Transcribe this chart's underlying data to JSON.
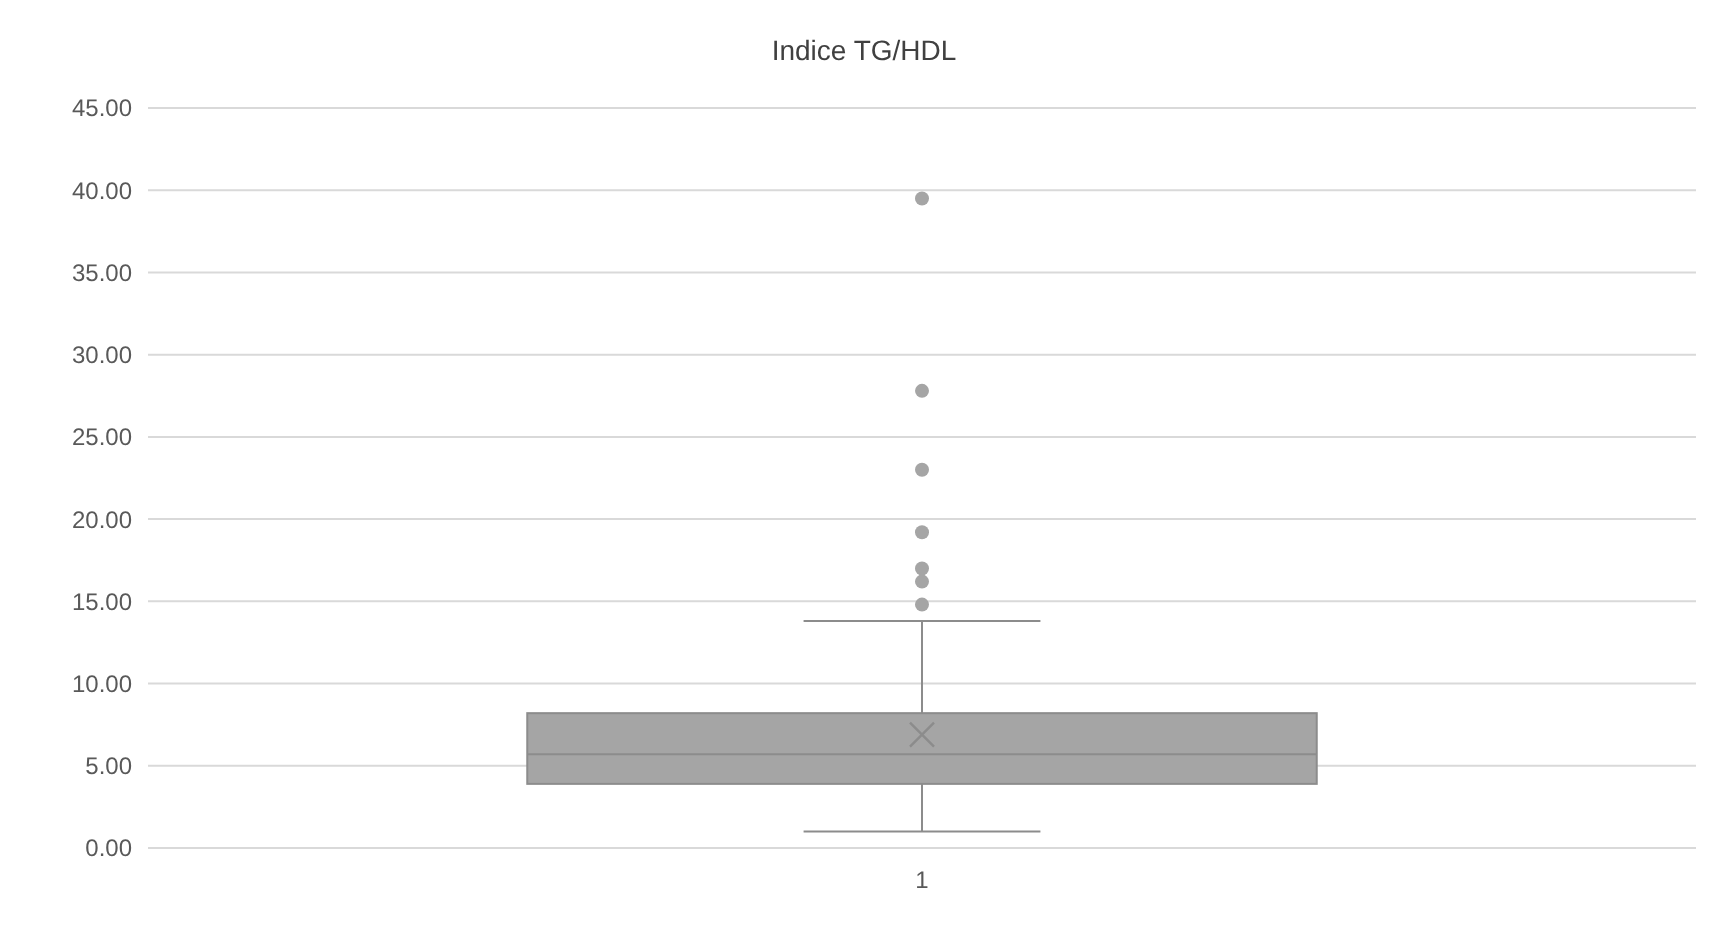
{
  "chart_data": {
    "type": "box",
    "title": "Indice TG/HDL",
    "categories": [
      "1"
    ],
    "boxes": [
      {
        "low": 1.0,
        "q1": 3.9,
        "median": 5.7,
        "q3": 8.2,
        "high": 13.8,
        "mean": 6.9,
        "outliers": [
          14.8,
          16.2,
          17.0,
          19.2,
          23.0,
          27.8,
          39.5
        ]
      }
    ],
    "color": "#a5a5a5",
    "ylim": [
      0,
      45
    ],
    "yticks": [
      {
        "value": 0,
        "label": "0.00"
      },
      {
        "value": 5,
        "label": "5.00"
      },
      {
        "value": 10,
        "label": "10.00"
      },
      {
        "value": 15,
        "label": "15.00"
      },
      {
        "value": 20,
        "label": "20.00"
      },
      {
        "value": 25,
        "label": "25.00"
      },
      {
        "value": 30,
        "label": "30.00"
      },
      {
        "value": 35,
        "label": "35.00"
      },
      {
        "value": 40,
        "label": "40.00"
      },
      {
        "value": 45,
        "label": "45.00"
      }
    ],
    "grid": true
  }
}
